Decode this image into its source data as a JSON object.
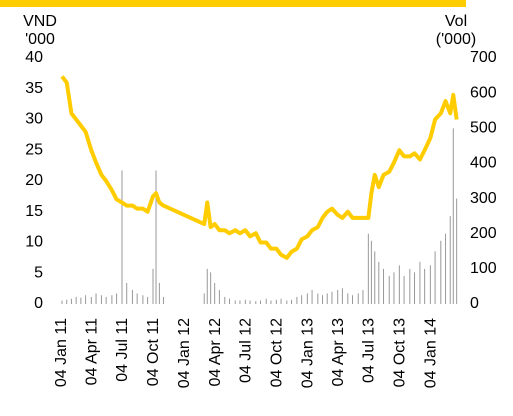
{
  "chart_data": {
    "type": "line",
    "y_label": [
      "VND",
      "'000"
    ],
    "y2_label": [
      "Vol",
      "('000)"
    ],
    "x": [
      "2011-01-04",
      "2011-01-18",
      "2011-02-01",
      "2011-02-15",
      "2011-03-01",
      "2011-03-15",
      "2011-04-01",
      "2011-04-15",
      "2011-05-01",
      "2011-05-15",
      "2011-06-01",
      "2011-06-15",
      "2011-07-01",
      "2011-07-15",
      "2011-08-01",
      "2011-08-15",
      "2011-09-01",
      "2011-09-15",
      "2011-10-01",
      "2011-10-10",
      "2011-10-20",
      "2011-11-01",
      "2012-03-01",
      "2012-03-10",
      "2012-03-20",
      "2012-04-01",
      "2012-04-15",
      "2012-05-01",
      "2012-05-15",
      "2012-06-01",
      "2012-06-15",
      "2012-07-01",
      "2012-07-15",
      "2012-08-01",
      "2012-08-15",
      "2012-09-01",
      "2012-09-15",
      "2012-10-01",
      "2012-10-15",
      "2012-11-01",
      "2012-11-15",
      "2012-12-01",
      "2012-12-15",
      "2013-01-01",
      "2013-01-15",
      "2013-02-01",
      "2013-02-15",
      "2013-03-01",
      "2013-03-15",
      "2013-04-01",
      "2013-04-15",
      "2013-05-01",
      "2013-05-15",
      "2013-06-01",
      "2013-06-15",
      "2013-07-01",
      "2013-07-10",
      "2013-07-20",
      "2013-08-01",
      "2013-08-15",
      "2013-09-01",
      "2013-09-15",
      "2013-10-01",
      "2013-10-15",
      "2013-11-01",
      "2013-11-15",
      "2013-12-01",
      "2013-12-15",
      "2014-01-01",
      "2014-01-15",
      "2014-02-01",
      "2014-02-15",
      "2014-03-01",
      "2014-03-10",
      "2014-03-20"
    ],
    "series": [
      {
        "color": "#ffcc00",
        "values": [
          37,
          36,
          31,
          30,
          29,
          28,
          25,
          23,
          21,
          20,
          18.5,
          17,
          16.5,
          16,
          16,
          15.5,
          15.5,
          15,
          17.5,
          18,
          16.5,
          16,
          13,
          16.5,
          12.5,
          13,
          12,
          12,
          11.5,
          12,
          11.5,
          12,
          11,
          11.5,
          10,
          10,
          9,
          9,
          8,
          7.5,
          8.5,
          9,
          10.5,
          11,
          12,
          12.5,
          14,
          15,
          15.5,
          14.5,
          14,
          15,
          14,
          14,
          14,
          14,
          18,
          21,
          19,
          21,
          21.5,
          23,
          25,
          24,
          24,
          24.5,
          23.5,
          25,
          27,
          30,
          31,
          33,
          31,
          34,
          30
        ]
      },
      {
        "color": "#999999",
        "axis": "y2",
        "values": [
          10,
          12,
          15,
          20,
          18,
          25,
          20,
          30,
          25,
          20,
          25,
          30,
          380,
          60,
          40,
          30,
          25,
          20,
          100,
          380,
          60,
          20,
          30,
          100,
          90,
          60,
          40,
          20,
          15,
          10,
          10,
          12,
          10,
          8,
          10,
          15,
          10,
          12,
          15,
          10,
          12,
          20,
          25,
          30,
          40,
          30,
          25,
          30,
          35,
          40,
          45,
          30,
          25,
          30,
          40,
          200,
          180,
          150,
          120,
          100,
          80,
          90,
          110,
          80,
          100,
          90,
          120,
          100,
          110,
          150,
          180,
          200,
          250,
          500,
          300
        ]
      }
    ],
    "xlim": [
      "2011-01-04",
      "2014-03-24"
    ],
    "xticks": [
      {
        "value": "2011-01-04",
        "label": "04 Jan 11"
      },
      {
        "value": "2011-04-04",
        "label": "04 Apr 11"
      },
      {
        "value": "2011-07-04",
        "label": "04 Jul 11"
      },
      {
        "value": "2011-10-04",
        "label": "04 Oct 11"
      },
      {
        "value": "2012-01-04",
        "label": "04 Jan 12"
      },
      {
        "value": "2012-04-04",
        "label": "04 Apr 12"
      },
      {
        "value": "2012-07-04",
        "label": "04 Jul 12"
      },
      {
        "value": "2012-10-04",
        "label": "04 Oct 12"
      },
      {
        "value": "2013-01-04",
        "label": "04 Jan 13"
      },
      {
        "value": "2013-04-04",
        "label": "04 Apr 13"
      },
      {
        "value": "2013-07-04",
        "label": "04 Jul 13"
      },
      {
        "value": "2013-10-04",
        "label": "04 Oct 13"
      },
      {
        "value": "2014-01-04",
        "label": "04 Jan 14"
      }
    ],
    "ylim": [
      0,
      40
    ],
    "yticks": [
      0,
      5,
      10,
      15,
      20,
      25,
      30,
      35,
      40
    ],
    "y2lim": [
      0,
      700
    ],
    "y2ticks": [
      0,
      100,
      200,
      300,
      400,
      500,
      600,
      700
    ]
  }
}
